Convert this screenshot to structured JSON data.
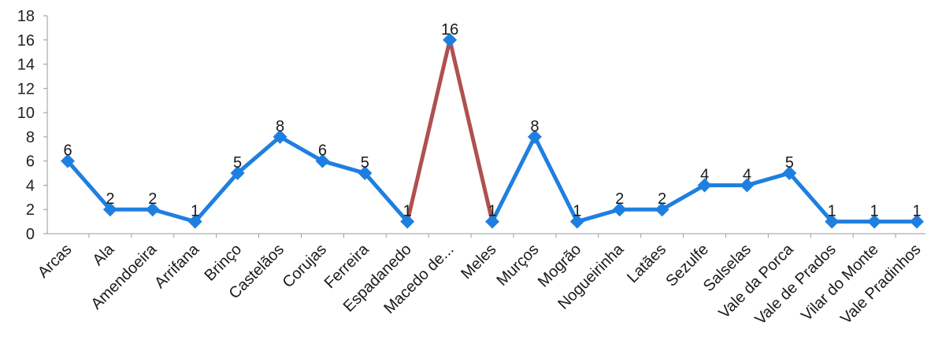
{
  "chart_data": {
    "type": "line",
    "title": "",
    "xlabel": "",
    "ylabel": "",
    "ylim": [
      0,
      18
    ],
    "yticks": [
      0,
      2,
      4,
      6,
      8,
      10,
      12,
      14,
      16,
      18
    ],
    "grid": false,
    "legend": "none",
    "categories": [
      "Arcas",
      "Ala",
      "Amendoeira",
      "Arrifana",
      "Brinço",
      "Castelãos",
      "Corujas",
      "Ferreira",
      "Espadanedo",
      "Macedo de...",
      "Meles",
      "Murços",
      "Mogrão",
      "Nogueirinha",
      "Latães",
      "Sezulfe",
      "Salselas",
      "Vale da Porca",
      "Vale de Prados",
      "Vilar do Monte",
      "Vale Pradinhos"
    ],
    "values": [
      6,
      2,
      2,
      1,
      5,
      8,
      6,
      5,
      1,
      16,
      1,
      8,
      1,
      2,
      2,
      4,
      4,
      5,
      1,
      1,
      1
    ],
    "data_labels": [
      "6",
      "2",
      "2",
      "1",
      "5",
      "8",
      "6",
      "5",
      "1",
      "16",
      "1",
      "8",
      "1",
      "2",
      "2",
      "4",
      "4",
      "5",
      "1",
      "1",
      "1"
    ],
    "highlight_segments": [
      [
        8,
        9
      ],
      [
        9,
        10
      ]
    ],
    "colors": {
      "line": "#1f7fe0",
      "marker": "#1f7fe0",
      "highlight": "#b05050"
    }
  }
}
